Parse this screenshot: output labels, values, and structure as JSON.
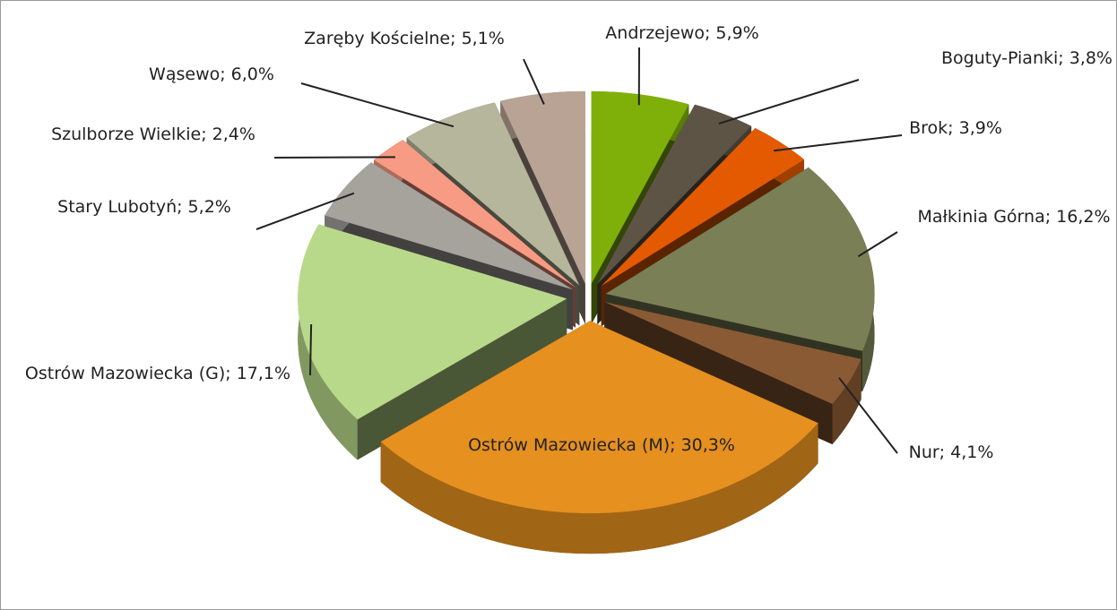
{
  "chart_data": {
    "type": "pie",
    "values": [
      5.9,
      3.8,
      3.9,
      16.2,
      4.1,
      30.3,
      17.1,
      5.2,
      2.4,
      6.0,
      5.1
    ],
    "value_labels": [
      "Andrzejewo; 5,9%",
      "Boguty-Pianki; 3,8%",
      "Brok; 3,9%",
      "Małkinia Górna; 16,2%",
      "Nur; 4,1%",
      "Ostrów Mazowiecka (M); 30,3%",
      "Ostrów Mazowiecka (G); 17,1%",
      "Stary Lubotyń; 5,2%",
      "Szulborze Wielkie; 2,4%",
      "Wąsewo; 6,0%",
      "Zaręby Kościelne; 5,1%"
    ],
    "colors": [
      "#7fb00a",
      "#5e5446",
      "#e35a00",
      "#7a7f55",
      "#8a5a34",
      "#e69020",
      "#b9d98a",
      "#a6a39d",
      "#f79b84",
      "#b5b69b",
      "#b9a395"
    ]
  }
}
